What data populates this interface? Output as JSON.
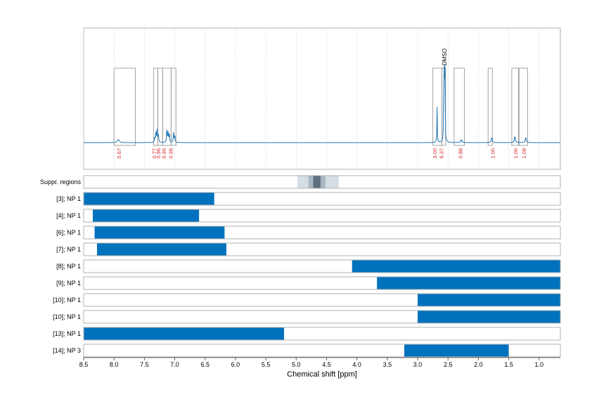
{
  "chart_data": {
    "type": "nmr-spectrum-with-range-bars",
    "xlabel": "Chemical shift [ppm]",
    "xlim": [
      8.5,
      0.65
    ],
    "x_reversed": true,
    "x_ticks": [
      "8.5",
      "8.0",
      "7.5",
      "7.0",
      "6.5",
      "6.0",
      "5.5",
      "5.0",
      "4.5",
      "4.0",
      "3.5",
      "3.0",
      "2.5",
      "2.0",
      "1.5",
      "1.0"
    ],
    "grid": true,
    "colors": {
      "spectrum": "#1f77b4",
      "bar": "#0072bd",
      "integral": "#d62728",
      "box": "#999999"
    },
    "spectrum": {
      "peaks": [
        {
          "ppm": 7.93,
          "height": 0.03,
          "width": 0.02
        },
        {
          "ppm": 7.33,
          "height": 0.05,
          "width": 0.006
        },
        {
          "ppm": 7.31,
          "height": 0.1,
          "width": 0.006
        },
        {
          "ppm": 7.29,
          "height": 0.13,
          "width": 0.006
        },
        {
          "ppm": 7.27,
          "height": 0.08,
          "width": 0.006
        },
        {
          "ppm": 7.13,
          "height": 0.13,
          "width": 0.006
        },
        {
          "ppm": 7.11,
          "height": 0.1,
          "width": 0.006
        },
        {
          "ppm": 7.09,
          "height": 0.09,
          "width": 0.006
        },
        {
          "ppm": 7.02,
          "height": 0.1,
          "width": 0.006
        },
        {
          "ppm": 7.0,
          "height": 0.07,
          "width": 0.006
        },
        {
          "ppm": 2.68,
          "height": 0.36,
          "width": 0.004
        },
        {
          "ppm": 2.57,
          "height": 0.58,
          "width": 0.004
        },
        {
          "ppm": 2.56,
          "height": 0.75,
          "width": 0.004
        },
        {
          "ppm": 2.55,
          "height": 0.68,
          "width": 0.004
        },
        {
          "ppm": 2.28,
          "height": 0.03,
          "width": 0.01
        },
        {
          "ppm": 1.78,
          "height": 0.05,
          "width": 0.01
        },
        {
          "ppm": 1.4,
          "height": 0.06,
          "width": 0.01
        },
        {
          "ppm": 1.22,
          "height": 0.05,
          "width": 0.01
        }
      ],
      "solvent_label": {
        "ppm": 2.56,
        "text": "DMSO"
      }
    },
    "integrals": [
      {
        "ppm_left": 8.0,
        "ppm_right": 7.65,
        "label": "0.67",
        "label_ppm": 7.92
      },
      {
        "ppm_left": 7.35,
        "ppm_right": 7.28,
        "label": "0.77",
        "label_ppm": 7.34
      },
      {
        "ppm_left": 7.28,
        "ppm_right": 7.2,
        "label": "0.96",
        "label_ppm": 7.27
      },
      {
        "ppm_left": 7.2,
        "ppm_right": 7.06,
        "label": "0.99",
        "label_ppm": 7.18
      },
      {
        "ppm_left": 7.06,
        "ppm_right": 6.98,
        "label": "0.98",
        "label_ppm": 7.07
      },
      {
        "ppm_left": 2.75,
        "ppm_right": 2.6,
        "label": "3.00",
        "label_ppm": 2.72
      },
      {
        "ppm_left": 2.6,
        "ppm_right": 2.54,
        "label": "6.37",
        "label_ppm": 2.61
      },
      {
        "ppm_left": 2.4,
        "ppm_right": 2.23,
        "label": "0.88",
        "label_ppm": 2.3
      },
      {
        "ppm_left": 1.84,
        "ppm_right": 1.77,
        "label": "1.00",
        "label_ppm": 1.77
      },
      {
        "ppm_left": 1.45,
        "ppm_right": 1.34,
        "label": "1.00",
        "label_ppm": 1.39
      },
      {
        "ppm_left": 1.33,
        "ppm_right": 1.19,
        "label": "1.08",
        "label_ppm": 1.25
      }
    ],
    "suppression": {
      "label": "Suppr. regions",
      "bands": [
        {
          "from": 4.98,
          "to": 4.3,
          "color": "#d5dde5"
        },
        {
          "from": 4.8,
          "to": 4.52,
          "color": "#a9b6c3"
        },
        {
          "from": 4.72,
          "to": 4.6,
          "color": "#5f6f7f"
        }
      ]
    },
    "series": [
      {
        "name": "[3]; NP 1",
        "from": 8.5,
        "to": 6.35
      },
      {
        "name": "[4]; NP 1",
        "from": 8.35,
        "to": 6.6
      },
      {
        "name": "[6]; NP 1",
        "from": 8.32,
        "to": 6.18
      },
      {
        "name": "[7]; NP 1",
        "from": 8.28,
        "to": 6.15
      },
      {
        "name": "[8]; NP 1",
        "from": 4.08,
        "to": 0.65
      },
      {
        "name": "[9]; NP 1",
        "from": 3.67,
        "to": 0.65
      },
      {
        "name": "[10]; NP 1",
        "from": 3.0,
        "to": 0.65
      },
      {
        "name": "[10]; NP 1",
        "from": 3.0,
        "to": 0.65
      },
      {
        "name": "[13]; NP 1",
        "from": 8.5,
        "to": 5.2
      },
      {
        "name": "[14]; NP 3",
        "from": 3.22,
        "to": 1.5
      }
    ]
  }
}
